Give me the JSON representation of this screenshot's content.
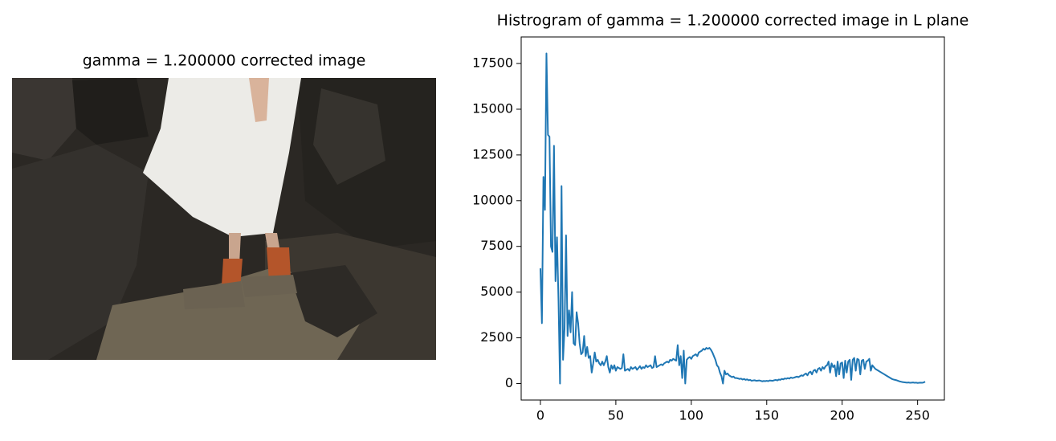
{
  "chart_data": [
    {
      "type": "image",
      "title": "gamma = 1.200000 corrected image"
    },
    {
      "type": "line",
      "title": "Histrogram of gamma = 1.200000 corrected image in L plane",
      "x": [
        0,
        1,
        2,
        3,
        4,
        5,
        6,
        7,
        8,
        9,
        10,
        11,
        12,
        13,
        14,
        15,
        16,
        17,
        18,
        19,
        20,
        21,
        22,
        23,
        24,
        25,
        26,
        27,
        28,
        29,
        30,
        31,
        32,
        33,
        34,
        35,
        36,
        37,
        38,
        39,
        40,
        41,
        42,
        43,
        44,
        45,
        46,
        47,
        48,
        49,
        50,
        51,
        52,
        53,
        54,
        55,
        56,
        57,
        58,
        59,
        60,
        61,
        62,
        63,
        64,
        65,
        66,
        67,
        68,
        69,
        70,
        71,
        72,
        73,
        74,
        75,
        76,
        77,
        78,
        79,
        80,
        81,
        82,
        83,
        84,
        85,
        86,
        87,
        88,
        89,
        90,
        91,
        92,
        93,
        94,
        95,
        96,
        97,
        98,
        99,
        100,
        101,
        102,
        103,
        104,
        105,
        106,
        107,
        108,
        109,
        110,
        111,
        112,
        113,
        114,
        115,
        116,
        117,
        118,
        119,
        120,
        121,
        122,
        123,
        124,
        125,
        126,
        127,
        128,
        129,
        130,
        131,
        132,
        133,
        134,
        135,
        136,
        137,
        138,
        139,
        140,
        141,
        142,
        143,
        144,
        145,
        146,
        147,
        148,
        149,
        150,
        151,
        152,
        153,
        154,
        155,
        156,
        157,
        158,
        159,
        160,
        161,
        162,
        163,
        164,
        165,
        166,
        167,
        168,
        169,
        170,
        171,
        172,
        173,
        174,
        175,
        176,
        177,
        178,
        179,
        180,
        181,
        182,
        183,
        184,
        185,
        186,
        187,
        188,
        189,
        190,
        191,
        192,
        193,
        194,
        195,
        196,
        197,
        198,
        199,
        200,
        201,
        202,
        203,
        204,
        205,
        206,
        207,
        208,
        209,
        210,
        211,
        212,
        213,
        214,
        215,
        216,
        217,
        218,
        219,
        220,
        221,
        222,
        223,
        224,
        225,
        226,
        227,
        228,
        229,
        230,
        231,
        232,
        233,
        234,
        235,
        236,
        237,
        238,
        239,
        240,
        241,
        242,
        243,
        244,
        245,
        246,
        247,
        248,
        249,
        250,
        251,
        252,
        253,
        254,
        255
      ],
      "series": [
        {
          "color": "#1f77b4",
          "values": [
            6300,
            3300,
            11300,
            9500,
            18050,
            13600,
            13500,
            7500,
            7200,
            13000,
            5600,
            8000,
            4500,
            0,
            10800,
            1300,
            3000,
            8100,
            2600,
            4000,
            2800,
            5000,
            2200,
            2100,
            3900,
            3300,
            2200,
            1600,
            1700,
            2600,
            1500,
            2000,
            1400,
            1500,
            600,
            1100,
            1700,
            1200,
            1300,
            1100,
            1000,
            1200,
            1000,
            1200,
            1500,
            900,
            600,
            1000,
            800,
            1000,
            700,
            900,
            850,
            800,
            850,
            1600,
            700,
            750,
            800,
            700,
            900,
            800,
            850,
            900,
            750,
            850,
            950,
            800,
            900,
            850,
            1000,
            900,
            950,
            1000,
            850,
            900,
            1500,
            900,
            950,
            1000,
            1050,
            1000,
            1100,
            1150,
            1200,
            1150,
            1300,
            1250,
            1350,
            1300,
            1250,
            2100,
            1000,
            1500,
            300,
            1800,
            0,
            1300,
            1400,
            1450,
            1350,
            1500,
            1550,
            1600,
            1500,
            1700,
            1750,
            1800,
            1900,
            1850,
            1950,
            1900,
            1950,
            1850,
            1700,
            1500,
            1300,
            1000,
            900,
            600,
            400,
            0,
            700,
            500,
            550,
            450,
            400,
            350,
            380,
            300,
            300,
            280,
            250,
            270,
            220,
            250,
            200,
            230,
            180,
            200,
            150,
            170,
            180,
            150,
            160,
            170,
            150,
            120,
            140,
            130,
            150,
            130,
            170,
            160,
            150,
            180,
            200,
            170,
            220,
            200,
            250,
            230,
            280,
            260,
            300,
            270,
            330,
            300,
            320,
            350,
            380,
            350,
            400,
            450,
            420,
            500,
            550,
            450,
            600,
            650,
            500,
            700,
            750,
            600,
            800,
            850,
            700,
            900,
            800,
            950,
            1000,
            1200,
            600,
            1100,
            900,
            1000,
            400,
            1200,
            500,
            1100,
            1150,
            300,
            1250,
            600,
            1200,
            1300,
            200,
            1300,
            1400,
            700,
            1350,
            1300,
            500,
            1250,
            1300,
            800,
            1200,
            1250,
            1350,
            700,
            1000,
            900,
            800,
            750,
            700,
            650,
            600,
            550,
            500,
            450,
            400,
            350,
            300,
            250,
            220,
            200,
            180,
            150,
            120,
            100,
            80,
            70,
            60,
            50,
            60,
            40,
            50,
            60,
            40,
            50,
            30,
            40,
            50,
            40,
            60,
            100
          ]
        }
      ],
      "xlim": [
        -12.75,
        267.75
      ],
      "ylim": [
        -902,
        18952
      ],
      "xticks": [
        0,
        50,
        100,
        150,
        200,
        250
      ],
      "yticks": [
        0,
        2500,
        5000,
        7500,
        10000,
        12500,
        15000,
        17500
      ]
    }
  ]
}
